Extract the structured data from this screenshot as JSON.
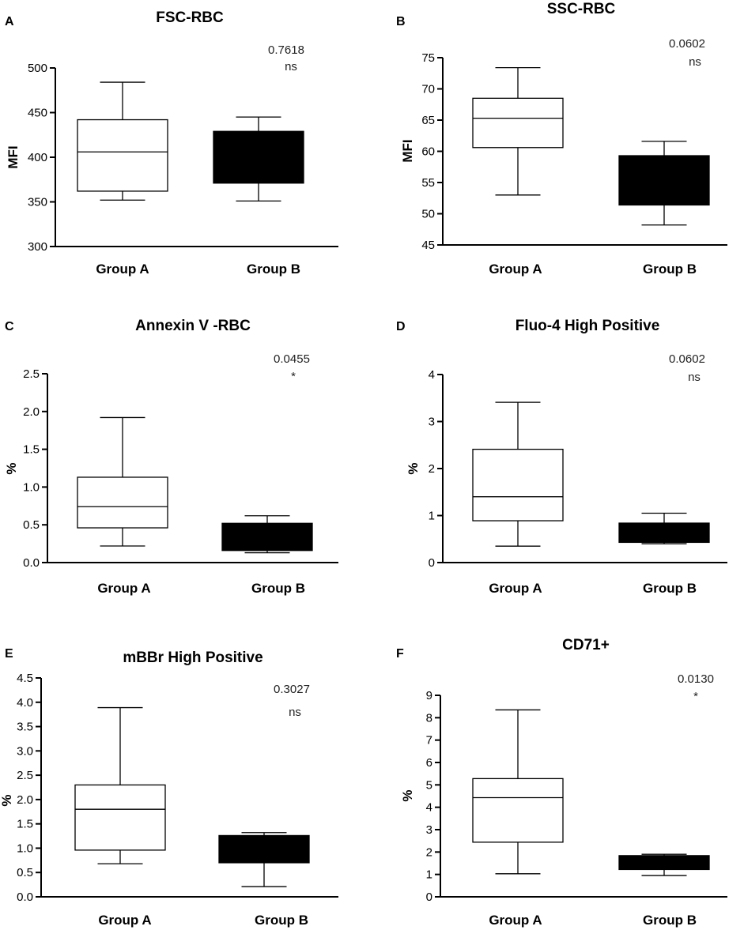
{
  "chart_data": [
    {
      "type": "box",
      "panel_label": "A",
      "title": "FSC-RBC",
      "ylabel": "MFI",
      "xlabel": "",
      "ylim": [
        300,
        500
      ],
      "yticks": [
        300,
        350,
        400,
        450,
        500
      ],
      "ytick_labels": [
        "300",
        "350",
        "400",
        "450",
        "500"
      ],
      "categories": [
        "Group A",
        "Group B"
      ],
      "boxes": [
        {
          "name": "Group A",
          "whisker_low": 352,
          "q1": 362,
          "median": 406,
          "q3": 442,
          "whisker_high": 484,
          "fill": "#ffffff"
        },
        {
          "name": "Group B",
          "whisker_low": 351,
          "q1": 371,
          "median": 400,
          "q3": 429,
          "whisker_high": 445,
          "fill": "#000000"
        }
      ],
      "p_value": "0.7618",
      "significance": "ns"
    },
    {
      "type": "box",
      "panel_label": "B",
      "title": "SSC-RBC",
      "ylabel": "MFI",
      "xlabel": "",
      "ylim": [
        45,
        75
      ],
      "yticks": [
        45,
        50,
        55,
        60,
        65,
        70,
        75
      ],
      "ytick_labels": [
        "45",
        "50",
        "55",
        "60",
        "65",
        "70",
        "75"
      ],
      "categories": [
        "Group A",
        "Group B"
      ],
      "boxes": [
        {
          "name": "Group A",
          "whisker_low": 53.0,
          "q1": 60.6,
          "median": 65.3,
          "q3": 68.5,
          "whisker_high": 73.4,
          "fill": "#ffffff"
        },
        {
          "name": "Group B",
          "whisker_low": 48.2,
          "q1": 51.4,
          "median": 55.0,
          "q3": 59.3,
          "whisker_high": 61.6,
          "fill": "#000000"
        }
      ],
      "p_value": "0.0602",
      "significance": "ns"
    },
    {
      "type": "box",
      "panel_label": "C",
      "title": "Annexin V -RBC",
      "ylabel": "%",
      "xlabel": "",
      "ylim": [
        0,
        2.5
      ],
      "yticks": [
        0,
        0.5,
        1.0,
        1.5,
        2.0,
        2.5
      ],
      "ytick_labels": [
        "0.0",
        "0.5",
        "1.0",
        "1.5",
        "2.0",
        "2.5"
      ],
      "categories": [
        "Group A",
        "Group B"
      ],
      "boxes": [
        {
          "name": "Group A",
          "whisker_low": 0.22,
          "q1": 0.46,
          "median": 0.74,
          "q3": 1.13,
          "whisker_high": 1.92,
          "fill": "#ffffff"
        },
        {
          "name": "Group B",
          "whisker_low": 0.13,
          "q1": 0.16,
          "median": 0.3,
          "q3": 0.52,
          "whisker_high": 0.62,
          "fill": "#000000"
        }
      ],
      "p_value": "0.0455",
      "significance": "*"
    },
    {
      "type": "box",
      "panel_label": "D",
      "title": "Fluo-4 High Positive",
      "ylabel": "%",
      "xlabel": "",
      "ylim": [
        0,
        4
      ],
      "yticks": [
        0,
        1,
        2,
        3,
        4
      ],
      "ytick_labels": [
        "0",
        "1",
        "2",
        "3",
        "4"
      ],
      "categories": [
        "Group A",
        "Group B"
      ],
      "boxes": [
        {
          "name": "Group A",
          "whisker_low": 0.35,
          "q1": 0.89,
          "median": 1.4,
          "q3": 2.41,
          "whisker_high": 3.41,
          "fill": "#ffffff"
        },
        {
          "name": "Group B",
          "whisker_low": 0.4,
          "q1": 0.43,
          "median": 0.6,
          "q3": 0.84,
          "whisker_high": 1.05,
          "fill": "#000000"
        }
      ],
      "p_value": "0.0602",
      "significance": "ns"
    },
    {
      "type": "box",
      "panel_label": "E",
      "title": "mBBr High Positive",
      "ylabel": "%",
      "xlabel": "",
      "ylim": [
        0,
        4.5
      ],
      "yticks": [
        0,
        0.5,
        1.0,
        1.5,
        2.0,
        2.5,
        3.0,
        3.5,
        4.0,
        4.5
      ],
      "ytick_labels": [
        "0.0",
        "0.5",
        "1.0",
        "1.5",
        "2.0",
        "2.5",
        "3.0",
        "3.5",
        "4.0",
        "4.5"
      ],
      "categories": [
        "Group A",
        "Group B"
      ],
      "boxes": [
        {
          "name": "Group A",
          "whisker_low": 0.68,
          "q1": 0.96,
          "median": 1.8,
          "q3": 2.3,
          "whisker_high": 3.89,
          "fill": "#ffffff"
        },
        {
          "name": "Group B",
          "whisker_low": 0.21,
          "q1": 0.7,
          "median": 1.0,
          "q3": 1.26,
          "whisker_high": 1.32,
          "fill": "#000000"
        }
      ],
      "p_value": "0.3027",
      "significance": "ns"
    },
    {
      "type": "box",
      "panel_label": "F",
      "title": "CD71+",
      "ylabel": "%",
      "xlabel": "",
      "ylim": [
        0,
        9
      ],
      "yticks": [
        0,
        1,
        2,
        3,
        4,
        5,
        6,
        7,
        8,
        9
      ],
      "ytick_labels": [
        "0",
        "1",
        "2",
        "3",
        "4",
        "5",
        "6",
        "7",
        "8",
        "9"
      ],
      "categories": [
        "Group A",
        "Group B"
      ],
      "boxes": [
        {
          "name": "Group A",
          "whisker_low": 1.03,
          "q1": 2.44,
          "median": 4.43,
          "q3": 5.28,
          "whisker_high": 8.35,
          "fill": "#ffffff"
        },
        {
          "name": "Group B",
          "whisker_low": 0.95,
          "q1": 1.22,
          "median": 1.55,
          "q3": 1.84,
          "whisker_high": 1.9,
          "fill": "#000000"
        }
      ],
      "p_value": "0.0130",
      "significance": "*"
    }
  ]
}
